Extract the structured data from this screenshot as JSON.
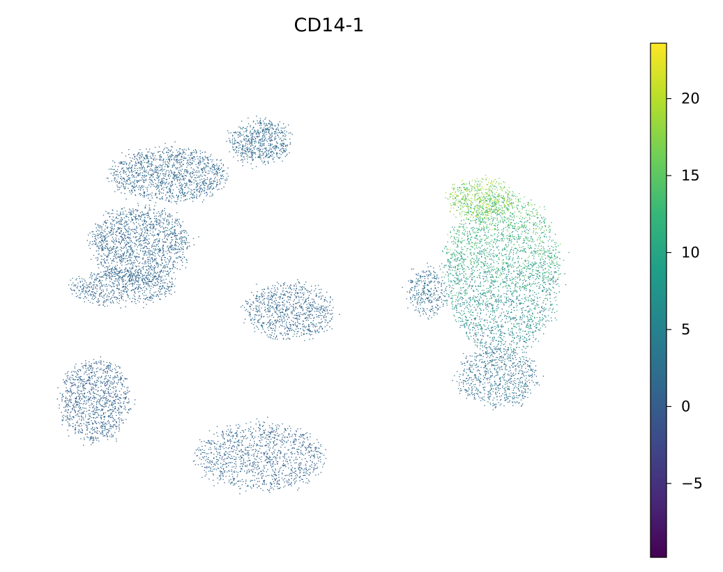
{
  "chart_data": {
    "type": "scatter",
    "title": "CD14-1",
    "xlabel": "",
    "ylabel": "",
    "grid": false,
    "axes_visible": false,
    "colormap": "viridis",
    "colorbar": {
      "range": [
        -9.8,
        23.6
      ],
      "ticks": [
        {
          "value": 20,
          "label": "20"
        },
        {
          "value": 15,
          "label": "15"
        },
        {
          "value": 10,
          "label": "10"
        },
        {
          "value": 5,
          "label": "5"
        },
        {
          "value": 0,
          "label": "0"
        },
        {
          "value": -5,
          "label": "−5"
        }
      ],
      "placement": "right"
    },
    "viridis_stops": [
      "#440154",
      "#482878",
      "#3e4989",
      "#31688e",
      "#26828e",
      "#1f9e89",
      "#35b779",
      "#6ece58",
      "#b5de2b",
      "#fde725"
    ],
    "clusters": [
      {
        "id": "upper-left-top",
        "cx": 0.38,
        "cy": 0.84,
        "rx": 0.05,
        "ry": 0.045,
        "value": 1.5,
        "spread": 1.3,
        "weight": 6
      },
      {
        "id": "upper-left-mid",
        "cx": 0.22,
        "cy": 0.77,
        "rx": 0.1,
        "ry": 0.055,
        "value": 1.4,
        "spread": 1.3,
        "weight": 12
      },
      {
        "id": "left-upper",
        "cx": 0.17,
        "cy": 0.62,
        "rx": 0.085,
        "ry": 0.08,
        "value": 1.3,
        "spread": 1.3,
        "weight": 14
      },
      {
        "id": "left-band",
        "cx": 0.14,
        "cy": 0.53,
        "rx": 0.09,
        "ry": 0.035,
        "value": 1.2,
        "spread": 1.2,
        "weight": 6
      },
      {
        "id": "center",
        "cx": 0.43,
        "cy": 0.48,
        "rx": 0.075,
        "ry": 0.06,
        "value": 1.2,
        "spread": 1.2,
        "weight": 8
      },
      {
        "id": "lower-left",
        "cx": 0.09,
        "cy": 0.29,
        "rx": 0.06,
        "ry": 0.085,
        "value": 0.6,
        "spread": 1.2,
        "weight": 10
      },
      {
        "id": "bottom-center",
        "cx": 0.38,
        "cy": 0.17,
        "rx": 0.11,
        "ry": 0.07,
        "value": 0.9,
        "spread": 1.2,
        "weight": 11
      },
      {
        "id": "right-main",
        "cx": 0.8,
        "cy": 0.56,
        "rx": 0.1,
        "ry": 0.17,
        "value": 9.0,
        "spread": 3.5,
        "weight": 26
      },
      {
        "id": "right-top",
        "cx": 0.76,
        "cy": 0.72,
        "rx": 0.055,
        "ry": 0.04,
        "value": 16.5,
        "spread": 3.0,
        "weight": 5
      },
      {
        "id": "right-lower",
        "cx": 0.79,
        "cy": 0.34,
        "rx": 0.07,
        "ry": 0.06,
        "value": 2.5,
        "spread": 1.6,
        "weight": 7
      },
      {
        "id": "right-left-lobe",
        "cx": 0.67,
        "cy": 0.52,
        "rx": 0.03,
        "ry": 0.05,
        "value": 2.0,
        "spread": 1.5,
        "weight": 3
      }
    ]
  }
}
